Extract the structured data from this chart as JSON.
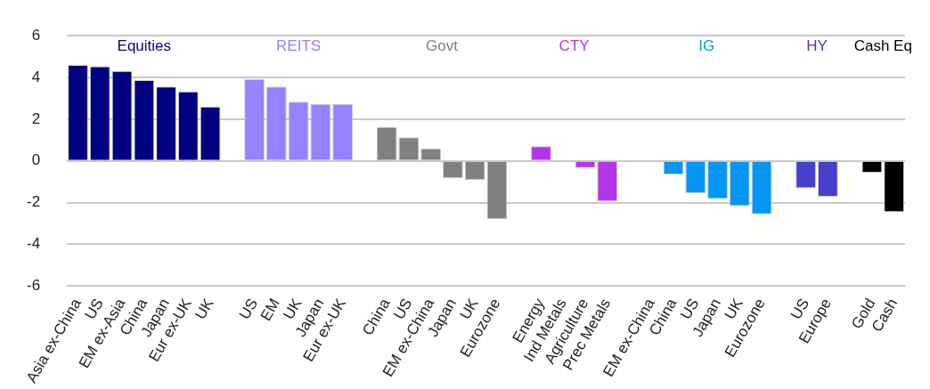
{
  "chart_data": {
    "type": "bar",
    "categories": [
      "Asia ex-China",
      "US",
      "EM ex-Asia",
      "China",
      "Japan",
      "Eur ex-UK",
      "UK",
      null,
      "US",
      "EM",
      "UK",
      "Japan",
      "Eur ex-UK",
      null,
      "China",
      "US",
      "EM ex-China",
      "Japan",
      "UK",
      "Eurozone",
      null,
      "Energy",
      "Ind Metals",
      "Agriculture",
      "Prec Metals",
      null,
      "EM ex-China",
      "China",
      "US",
      "Japan",
      "UK",
      "Eurozone",
      null,
      "US",
      "Europe",
      null,
      "Gold",
      "Cash"
    ],
    "series": [
      {
        "name": "Equities",
        "color": "#000080",
        "values": [
          4.6,
          4.54,
          4.31,
          3.87,
          3.56,
          3.33,
          2.6,
          null,
          null,
          null,
          null,
          null,
          null,
          null,
          null,
          null,
          null,
          null,
          null,
          null,
          null,
          null,
          null,
          null,
          null,
          null,
          null,
          null,
          null,
          null,
          null,
          null,
          null,
          null,
          null,
          null,
          null,
          null
        ]
      },
      {
        "name": "REITS",
        "color": "#9482ff",
        "values": [
          null,
          null,
          null,
          null,
          null,
          null,
          null,
          null,
          3.93,
          3.56,
          2.84,
          2.73,
          2.73,
          null,
          null,
          null,
          null,
          null,
          null,
          null,
          null,
          null,
          null,
          null,
          null,
          null,
          null,
          null,
          null,
          null,
          null,
          null,
          null,
          null,
          null,
          null,
          null,
          null
        ]
      },
      {
        "name": "Govt",
        "color": "#808080",
        "values": [
          null,
          null,
          null,
          null,
          null,
          null,
          null,
          null,
          null,
          null,
          null,
          null,
          null,
          null,
          1.63,
          1.13,
          0.59,
          -0.84,
          -0.92,
          -2.8,
          null,
          null,
          null,
          null,
          null,
          null,
          null,
          null,
          null,
          null,
          null,
          null,
          null,
          null,
          null,
          null,
          null,
          null
        ]
      },
      {
        "name": "CTY",
        "color": "#b535e8",
        "values": [
          null,
          null,
          null,
          null,
          null,
          null,
          null,
          null,
          null,
          null,
          null,
          null,
          null,
          null,
          null,
          null,
          null,
          null,
          null,
          null,
          null,
          0.7,
          0,
          -0.35,
          -1.95,
          null,
          null,
          null,
          null,
          null,
          null,
          null,
          null,
          null,
          null,
          null,
          null,
          null
        ]
      },
      {
        "name": "IG",
        "color": "#0596f5",
        "values": [
          null,
          null,
          null,
          null,
          null,
          null,
          null,
          null,
          null,
          null,
          null,
          null,
          null,
          null,
          null,
          null,
          null,
          null,
          null,
          null,
          null,
          null,
          null,
          null,
          null,
          null,
          0,
          -0.65,
          -1.55,
          -1.83,
          -2.17,
          -2.57,
          null,
          null,
          null,
          null,
          null,
          null
        ]
      },
      {
        "name": "HY",
        "color": "#4640cc",
        "values": [
          null,
          null,
          null,
          null,
          null,
          null,
          null,
          null,
          null,
          null,
          null,
          null,
          null,
          null,
          null,
          null,
          null,
          null,
          null,
          null,
          null,
          null,
          null,
          null,
          null,
          null,
          null,
          null,
          null,
          null,
          null,
          null,
          null,
          -1.32,
          -1.72,
          null,
          null,
          null
        ]
      },
      {
        "name": "Cash Eq",
        "color": "#000000",
        "values": [
          null,
          null,
          null,
          null,
          null,
          null,
          null,
          null,
          null,
          null,
          null,
          null,
          null,
          null,
          null,
          null,
          null,
          null,
          null,
          null,
          null,
          null,
          null,
          null,
          null,
          null,
          null,
          null,
          null,
          null,
          null,
          null,
          null,
          null,
          null,
          null,
          -0.57,
          -2.46
        ]
      }
    ],
    "ylim": [
      -6,
      6
    ],
    "yticks": [
      -6,
      -4,
      -2,
      0,
      2,
      4,
      6
    ],
    "grid": "y",
    "legend": false
  }
}
